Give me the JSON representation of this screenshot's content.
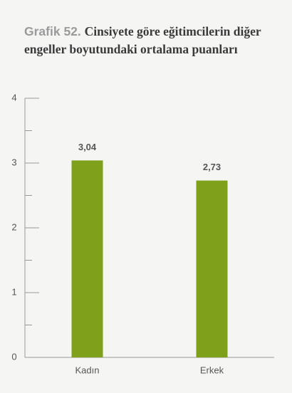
{
  "chart_data": {
    "type": "bar",
    "title_label": "Grafik 52.",
    "title": "Cinsiyete göre eğitimcilerin diğer engeller boyutundaki ortalama puanları",
    "categories": [
      "Kadın",
      "Erkek"
    ],
    "values": [
      3.04,
      2.73
    ],
    "value_labels": [
      "3,04",
      "2,73"
    ],
    "color": "#7fa01a",
    "ylim": [
      0,
      4
    ],
    "yticks": [
      0,
      1,
      2,
      3,
      4
    ],
    "minor_yticks": [
      0.5,
      1.5,
      2.5,
      3.5
    ]
  }
}
